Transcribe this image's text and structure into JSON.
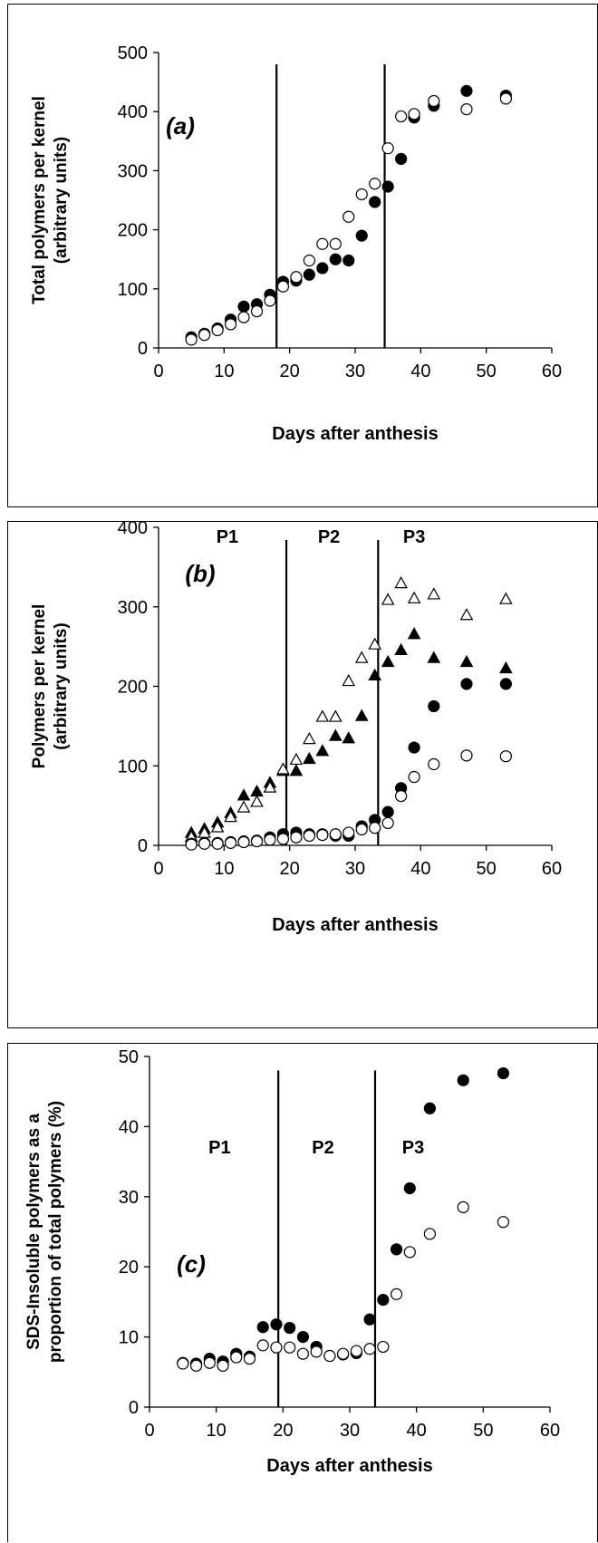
{
  "colors": {
    "axis": "#000000",
    "marker": "#000000",
    "background": "#ffffff"
  },
  "chart_data": [
    {
      "type": "scatter",
      "panel_label": "(a)",
      "title": "",
      "xlabel": "Days after anthesis",
      "ylabel": [
        "Total polymers per kernel",
        "(arbitrary units)"
      ],
      "xlim": [
        0,
        60
      ],
      "ylim": [
        0,
        500
      ],
      "xticks": [
        0,
        10,
        20,
        30,
        40,
        50,
        60
      ],
      "yticks": [
        0,
        100,
        200,
        300,
        400,
        500
      ],
      "vlines": [
        18,
        34.5
      ],
      "phase_labels": [],
      "series": [
        {
          "marker": "filled-circle",
          "x": [
            5,
            7,
            9,
            11,
            13,
            15,
            17,
            19,
            21,
            23,
            25,
            27,
            29,
            31,
            33,
            35,
            37,
            39,
            42,
            47,
            53
          ],
          "y": [
            18,
            24,
            33,
            48,
            70,
            74,
            90,
            112,
            114,
            124,
            135,
            150,
            148,
            190,
            247,
            273,
            320,
            390,
            410,
            435,
            427
          ]
        },
        {
          "marker": "open-circle",
          "x": [
            5,
            7,
            9,
            11,
            13,
            15,
            17,
            19,
            21,
            23,
            25,
            27,
            29,
            31,
            33,
            35,
            37,
            39,
            42,
            47,
            53
          ],
          "y": [
            14,
            22,
            30,
            40,
            52,
            62,
            80,
            104,
            120,
            148,
            176,
            176,
            222,
            260,
            278,
            338,
            392,
            396,
            418,
            404,
            422
          ]
        }
      ]
    },
    {
      "type": "scatter",
      "panel_label": "(b)",
      "title": "",
      "xlabel": "Days after anthesis",
      "ylabel": [
        "Polymers per kernel",
        "(arbitrary units)"
      ],
      "xlim": [
        0,
        60
      ],
      "ylim": [
        0,
        400
      ],
      "xticks": [
        0,
        10,
        20,
        30,
        40,
        50,
        60
      ],
      "yticks": [
        0,
        100,
        200,
        300,
        400
      ],
      "vlines": [
        19.5,
        33.5
      ],
      "phase_labels": [
        {
          "text": "P1",
          "x": 10.5
        },
        {
          "text": "P2",
          "x": 26
        },
        {
          "text": "P3",
          "x": 39
        }
      ],
      "series": [
        {
          "marker": "filled-triangle",
          "x": [
            5,
            7,
            9,
            11,
            13,
            15,
            17,
            19,
            21,
            23,
            25,
            27,
            29,
            31,
            33,
            35,
            37,
            39,
            42,
            47,
            53
          ],
          "y": [
            15,
            20,
            28,
            40,
            62,
            67,
            78,
            93,
            93,
            108,
            118,
            137,
            134,
            162,
            213,
            230,
            245,
            265,
            235,
            230,
            222
          ]
        },
        {
          "marker": "open-triangle",
          "x": [
            5,
            7,
            9,
            11,
            13,
            15,
            17,
            19,
            21,
            23,
            25,
            27,
            29,
            31,
            33,
            35,
            37,
            39,
            42,
            47,
            53
          ],
          "y": [
            10,
            15,
            22,
            35,
            47,
            54,
            72,
            95,
            107,
            133,
            161,
            161,
            206,
            235,
            252,
            308,
            329,
            310,
            315,
            289,
            309
          ]
        },
        {
          "marker": "filled-circle",
          "x": [
            5,
            7,
            9,
            11,
            13,
            15,
            17,
            19,
            21,
            23,
            25,
            27,
            29,
            31,
            33,
            35,
            37,
            39,
            42,
            47,
            53
          ],
          "y": [
            2,
            3,
            3,
            4,
            5,
            6,
            10,
            14,
            16,
            14,
            14,
            12,
            12,
            24,
            32,
            42,
            72,
            123,
            175,
            203,
            203
          ]
        },
        {
          "marker": "open-circle",
          "x": [
            5,
            7,
            9,
            11,
            13,
            15,
            17,
            19,
            21,
            23,
            25,
            27,
            29,
            31,
            33,
            35,
            37,
            39,
            42,
            47,
            53
          ],
          "y": [
            1,
            2,
            2,
            3,
            4,
            5,
            7,
            8,
            10,
            12,
            13,
            14,
            16,
            20,
            22,
            28,
            62,
            86,
            102,
            113,
            112
          ]
        }
      ]
    },
    {
      "type": "scatter",
      "panel_label": "(c)",
      "title": "",
      "xlabel": "Days after anthesis",
      "ylabel": [
        "SDS-Insoluble polymers as a",
        "proportion of total polymers (%)"
      ],
      "xlim": [
        0,
        60
      ],
      "ylim": [
        0,
        50
      ],
      "xticks": [
        0,
        10,
        20,
        30,
        40,
        50,
        60
      ],
      "yticks": [
        0,
        10,
        20,
        30,
        40,
        50
      ],
      "vlines": [
        19.3,
        33.8
      ],
      "phase_labels": [
        {
          "text": "P1",
          "x": 10.5
        },
        {
          "text": "P2",
          "x": 26
        },
        {
          "text": "P3",
          "x": 39.5
        }
      ],
      "series": [
        {
          "marker": "filled-circle",
          "x": [
            5,
            7,
            9,
            11,
            13,
            15,
            17,
            19,
            21,
            23,
            25,
            27,
            29,
            31,
            33,
            35,
            37,
            39,
            42,
            47,
            53
          ],
          "y": [
            6.3,
            6.2,
            6.9,
            6.5,
            7.6,
            7.2,
            11.4,
            11.8,
            11.3,
            10.0,
            8.6,
            7.3,
            7.5,
            7.7,
            12.5,
            15.3,
            22.5,
            31.2,
            42.6,
            46.6,
            47.6
          ]
        },
        {
          "marker": "open-circle",
          "x": [
            5,
            7,
            9,
            11,
            13,
            15,
            17,
            19,
            21,
            23,
            25,
            27,
            29,
            31,
            33,
            35,
            37,
            39,
            42,
            47,
            53
          ],
          "y": [
            6.2,
            5.9,
            6.3,
            5.9,
            7.1,
            6.9,
            8.8,
            8.5,
            8.5,
            7.6,
            7.9,
            7.3,
            7.6,
            8.0,
            8.3,
            8.6,
            16.1,
            22.1,
            24.7,
            28.5,
            26.4
          ]
        }
      ]
    }
  ]
}
